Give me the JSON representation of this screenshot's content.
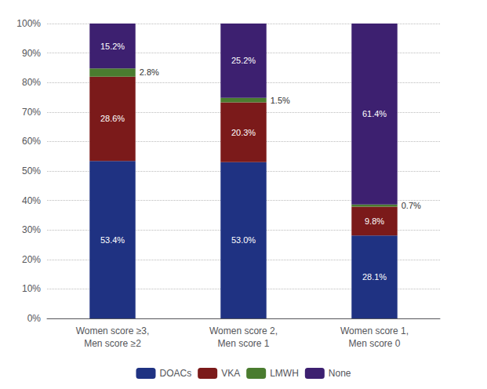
{
  "chart_data": {
    "type": "bar",
    "stacked": true,
    "categories": [
      "Women score ≥3,\nMen score ≥2",
      "Women score 2,\nMen score 1",
      "Women score 1,\nMen score 0"
    ],
    "series": [
      {
        "name": "DOACs",
        "color": "#1f3282",
        "values": [
          53.4,
          53.0,
          28.1
        ],
        "value_labels": [
          "53.4%",
          "53.0%",
          "28.1%"
        ]
      },
      {
        "name": "VKA",
        "color": "#7b1a1a",
        "values": [
          28.6,
          20.3,
          9.8
        ],
        "value_labels": [
          "28.6%",
          "20.3%",
          "9.8%"
        ]
      },
      {
        "name": "LMWH",
        "color": "#4a7c2f",
        "values": [
          2.8,
          1.5,
          0.7
        ],
        "value_labels": [
          "2.8%",
          "1.5%",
          "0.7%"
        ]
      },
      {
        "name": "None",
        "color": "#3d2070",
        "values": [
          15.2,
          25.2,
          61.4
        ],
        "value_labels": [
          "15.2%",
          "25.2%",
          "61.4%"
        ]
      }
    ],
    "ylim": [
      0,
      100
    ],
    "yticks": [
      {
        "value": 0,
        "label": "0%"
      },
      {
        "value": 10,
        "label": "10%"
      },
      {
        "value": 20,
        "label": "20%"
      },
      {
        "value": 30,
        "label": "30%"
      },
      {
        "value": 40,
        "label": "40%"
      },
      {
        "value": 50,
        "label": "50%"
      },
      {
        "value": 60,
        "label": "60%"
      },
      {
        "value": 70,
        "label": "70%"
      },
      {
        "value": 80,
        "label": "80%"
      },
      {
        "value": 90,
        "label": "90%"
      },
      {
        "value": 100,
        "label": "100%"
      }
    ],
    "grid": true,
    "data_labels": true,
    "legend": "bottom"
  }
}
